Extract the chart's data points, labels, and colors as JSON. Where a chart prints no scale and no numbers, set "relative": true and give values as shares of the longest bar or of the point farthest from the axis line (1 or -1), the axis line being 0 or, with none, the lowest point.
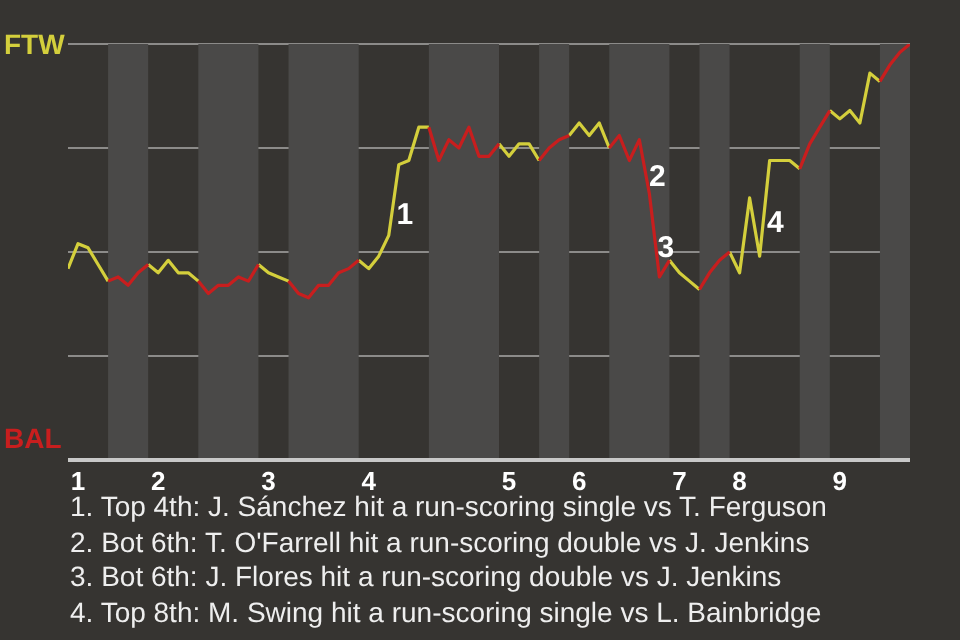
{
  "chart_data": {
    "type": "line",
    "relative": true,
    "grid": "y",
    "legend": false,
    "categories": [
      null,
      "1",
      null,
      null,
      null,
      null,
      null,
      null,
      null,
      "2",
      null,
      null,
      null,
      null,
      null,
      null,
      null,
      null,
      null,
      null,
      "3",
      null,
      null,
      null,
      null,
      null,
      null,
      null,
      null,
      null,
      "4",
      null,
      null,
      null,
      null,
      null,
      null,
      null,
      null,
      null,
      null,
      null,
      null,
      null,
      "5",
      null,
      null,
      null,
      null,
      null,
      null,
      "6",
      null,
      null,
      null,
      null,
      null,
      null,
      null,
      null,
      null,
      "7",
      null,
      null,
      null,
      null,
      null,
      "8",
      null,
      null,
      null,
      null,
      null,
      null,
      null,
      null,
      null,
      "9",
      null,
      null,
      null,
      null,
      null,
      null,
      null
    ],
    "series": [
      {
        "name": "FTW",
        "color": "#d4cf3c",
        "values": [
          0.46,
          0.52,
          0.51,
          0.47,
          0.43,
          null,
          null,
          null,
          0.47,
          0.45,
          0.48,
          0.45,
          0.45,
          0.43,
          null,
          null,
          null,
          null,
          null,
          0.47,
          0.45,
          0.44,
          0.43,
          null,
          null,
          null,
          null,
          null,
          null,
          0.48,
          0.46,
          0.49,
          0.54,
          0.71,
          0.72,
          0.8,
          0.8,
          null,
          null,
          null,
          null,
          null,
          null,
          0.76,
          0.73,
          0.76,
          0.76,
          0.72,
          null,
          null,
          0.78,
          0.81,
          0.78,
          0.81,
          0.75,
          null,
          null,
          null,
          null,
          null,
          0.48,
          0.45,
          0.43,
          0.41,
          null,
          null,
          0.5,
          0.45,
          0.63,
          0.49,
          0.72,
          0.72,
          0.72,
          0.7,
          null,
          null,
          0.84,
          0.82,
          0.84,
          0.81,
          0.93,
          0.91,
          null,
          null,
          null
        ]
      },
      {
        "name": "BAL",
        "color": "#c81e1e",
        "values": [
          null,
          null,
          null,
          null,
          0.43,
          0.44,
          0.42,
          0.45,
          0.47,
          null,
          null,
          null,
          null,
          0.43,
          0.4,
          0.42,
          0.42,
          0.44,
          0.43,
          0.47,
          null,
          null,
          0.43,
          0.4,
          0.39,
          0.42,
          0.42,
          0.45,
          0.46,
          0.48,
          null,
          null,
          null,
          null,
          null,
          null,
          0.8,
          0.72,
          0.77,
          0.75,
          0.8,
          0.73,
          0.73,
          0.76,
          null,
          null,
          null,
          0.72,
          0.75,
          0.77,
          0.78,
          null,
          null,
          null,
          0.75,
          0.78,
          0.72,
          0.77,
          0.64,
          0.44,
          0.48,
          null,
          null,
          0.41,
          0.45,
          0.48,
          0.5,
          null,
          null,
          null,
          null,
          null,
          null,
          0.7,
          0.76,
          0.8,
          0.84,
          null,
          null,
          null,
          null,
          0.91,
          0.95,
          0.98,
          1
        ]
      }
    ],
    "annotations": [
      "1",
      "2",
      "3",
      "4",
      "1. Top 4th: J. Sánchez hit a run-scoring single vs T. Ferguson",
      "2. Bot 6th: T. O'Farrell hit a run-scoring double vs J. Jenkins",
      "3. Bot 6th: J. Flores hit a run-scoring double vs J. Jenkins",
      "4. Top 8th: M. Swing hit a run-scoring single vs L. Bainbridge"
    ]
  }
}
